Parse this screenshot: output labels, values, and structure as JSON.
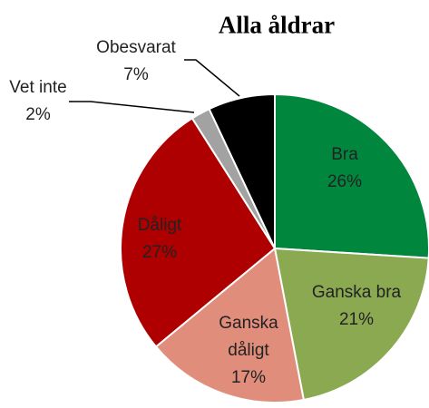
{
  "chart_data": {
    "type": "pie",
    "title": "Alla åldrar",
    "categories": [
      "Bra",
      "Ganska bra",
      "Ganska dåligt",
      "Dåligt",
      "Vet inte",
      "Obesvarat"
    ],
    "values": [
      26,
      21,
      17,
      27,
      2,
      7
    ],
    "value_labels": [
      "26%",
      "21%",
      "17%",
      "27%",
      "2%",
      "7%"
    ],
    "colors": [
      "#00873d",
      "#8aa951",
      "#e18d7c",
      "#ae0000",
      "#a2a2a2",
      "#000000"
    ]
  }
}
